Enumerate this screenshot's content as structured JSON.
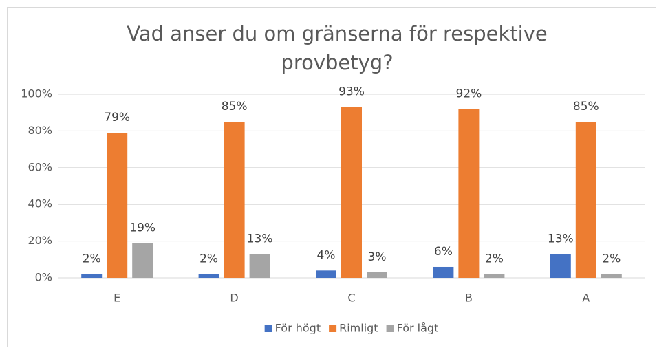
{
  "chart_data": {
    "type": "bar",
    "title": "Vad anser du om gränserna för respektive provbetyg?",
    "categories": [
      "E",
      "D",
      "C",
      "B",
      "A"
    ],
    "series": [
      {
        "name": "För högt",
        "color": "#4472c4",
        "values": [
          2,
          2,
          4,
          6,
          13
        ],
        "value_labels": [
          "2%",
          "2%",
          "4%",
          "6%",
          "13%"
        ]
      },
      {
        "name": "Rimligt",
        "color": "#ed7d31",
        "values": [
          79,
          85,
          93,
          92,
          85
        ],
        "value_labels": [
          "79%",
          "85%",
          "93%",
          "92%",
          "85%"
        ]
      },
      {
        "name": "För lågt",
        "color": "#a5a5a5",
        "values": [
          19,
          13,
          3,
          2,
          2
        ],
        "value_labels": [
          "19%",
          "13%",
          "3%",
          "2%",
          "2%"
        ]
      }
    ],
    "ylim": [
      0,
      100
    ],
    "yticks": [
      {
        "value": 0,
        "label": "0%"
      },
      {
        "value": 20,
        "label": "20%"
      },
      {
        "value": 40,
        "label": "40%"
      },
      {
        "value": 60,
        "label": "60%"
      },
      {
        "value": 80,
        "label": "80%"
      },
      {
        "value": 100,
        "label": "100%"
      }
    ],
    "grid": true,
    "legend": "bottom"
  }
}
